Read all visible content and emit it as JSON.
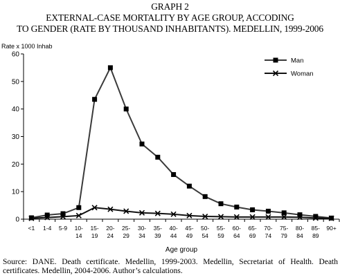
{
  "header": {
    "graph_label": "GRAPH 2",
    "title_line1": "EXTERNAL-CASE MORTALITY BY AGE GROUP, ACCODING",
    "title_line2": "TO GENDER (RATE BY THOUSAND INHABITANTS). MEDELLIN, 1999-2006"
  },
  "footer": {
    "source": "Source: DANE. Death certificate. Medellin, 1999-2003. Medellin, Secretariat of Health. Death certificates. Medellin, 2004-2006. Author’s calculations."
  },
  "chart_data": {
    "type": "line",
    "title": "EXTERNAL-CASE MORTALITY BY AGE GROUP, ACCODING TO GENDER (RATE BY THOUSAND INHABITANTS). MEDELLIN, 1999-2006",
    "ylabel": "Rate x 1000 Inhab",
    "xlabel": "Age group",
    "ylim": [
      0,
      60
    ],
    "yticks": [
      0,
      10,
      20,
      30,
      40,
      50,
      60
    ],
    "grid": false,
    "legend": "top-right",
    "categories": [
      [
        "<1"
      ],
      [
        "1-4"
      ],
      [
        "5-9"
      ],
      [
        "10-",
        "14"
      ],
      [
        "15-",
        "19"
      ],
      [
        "20-",
        "24"
      ],
      [
        "25-",
        "29"
      ],
      [
        "30-",
        "34"
      ],
      [
        "35-",
        "39"
      ],
      [
        "40-",
        "44"
      ],
      [
        "45-",
        "49"
      ],
      [
        "50-",
        "54"
      ],
      [
        "55-",
        "59"
      ],
      [
        "60-",
        "64"
      ],
      [
        "65-",
        "69"
      ],
      [
        "70-",
        "74"
      ],
      [
        "75-",
        "79"
      ],
      [
        "80-",
        "84"
      ],
      [
        "85-",
        "89"
      ],
      [
        "90+"
      ]
    ],
    "series": [
      {
        "name": "Man",
        "marker": "square",
        "color": "#3a3a3a",
        "values": [
          0.5,
          1.5,
          2.0,
          4.2,
          43.5,
          55.0,
          40.0,
          27.3,
          22.5,
          16.2,
          12.0,
          8.2,
          5.6,
          4.4,
          3.4,
          2.9,
          2.3,
          1.6,
          1.0,
          0.4
        ]
      },
      {
        "name": "Woman",
        "marker": "x",
        "color": "#111111",
        "values": [
          0.3,
          0.6,
          0.9,
          1.3,
          4.2,
          3.6,
          2.9,
          2.3,
          2.1,
          1.8,
          1.3,
          1.0,
          0.9,
          0.8,
          0.8,
          0.8,
          0.8,
          0.7,
          0.4,
          0.3
        ]
      }
    ]
  }
}
